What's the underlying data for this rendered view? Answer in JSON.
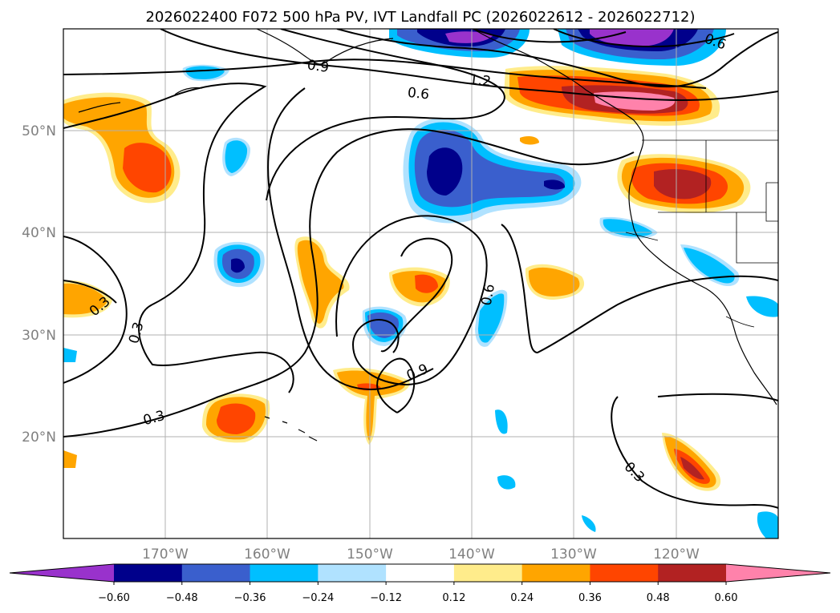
{
  "title": "2026022400 F072 500 hPa PV, IVT Landfall PC (2026022612 - 2026022712)",
  "lon_labels": [
    "170°W",
    "160°W",
    "150°W",
    "140°W",
    "130°W",
    "120°W"
  ],
  "lat_labels": [
    "50°N",
    "40°N",
    "30°N",
    "20°N"
  ],
  "colorbar": {
    "colors": [
      "#9932cc",
      "#00008b",
      "#3a5fcd",
      "#00bfff",
      "#b0e2ff",
      "#ffffff",
      "#ffec8b",
      "#ffa500",
      "#ff4500",
      "#b22222",
      "#ff82ab"
    ],
    "tick_labels": [
      "−0.60",
      "−0.48",
      "−0.36",
      "−0.24",
      "−0.12",
      "0.12",
      "0.24",
      "0.36",
      "0.48",
      "0.60"
    ]
  },
  "contour_labels": [
    "0.9",
    "1.2",
    "0.6",
    "0.6",
    "0.3",
    "0.3",
    "0.3",
    "0.9",
    "0.6",
    "0.3"
  ],
  "chart_data": {
    "type": "contour_map",
    "title": "2026022400 F072 500 hPa PV, IVT Landfall PC (2026022612 - 2026022712)",
    "fields": [
      "500 hPa PV (black contours)",
      "IVT Landfall PC (filled, colorbar)"
    ],
    "lon_range": [
      -180,
      -110
    ],
    "lat_range": [
      10,
      60
    ],
    "contour_levels": [
      0.3,
      0.6,
      0.9,
      1.2
    ],
    "colorbar_levels": [
      -0.6,
      -0.48,
      -0.36,
      -0.24,
      -0.12,
      0.12,
      0.24,
      0.36,
      0.48,
      0.6
    ],
    "colorbar_extend": "both"
  }
}
